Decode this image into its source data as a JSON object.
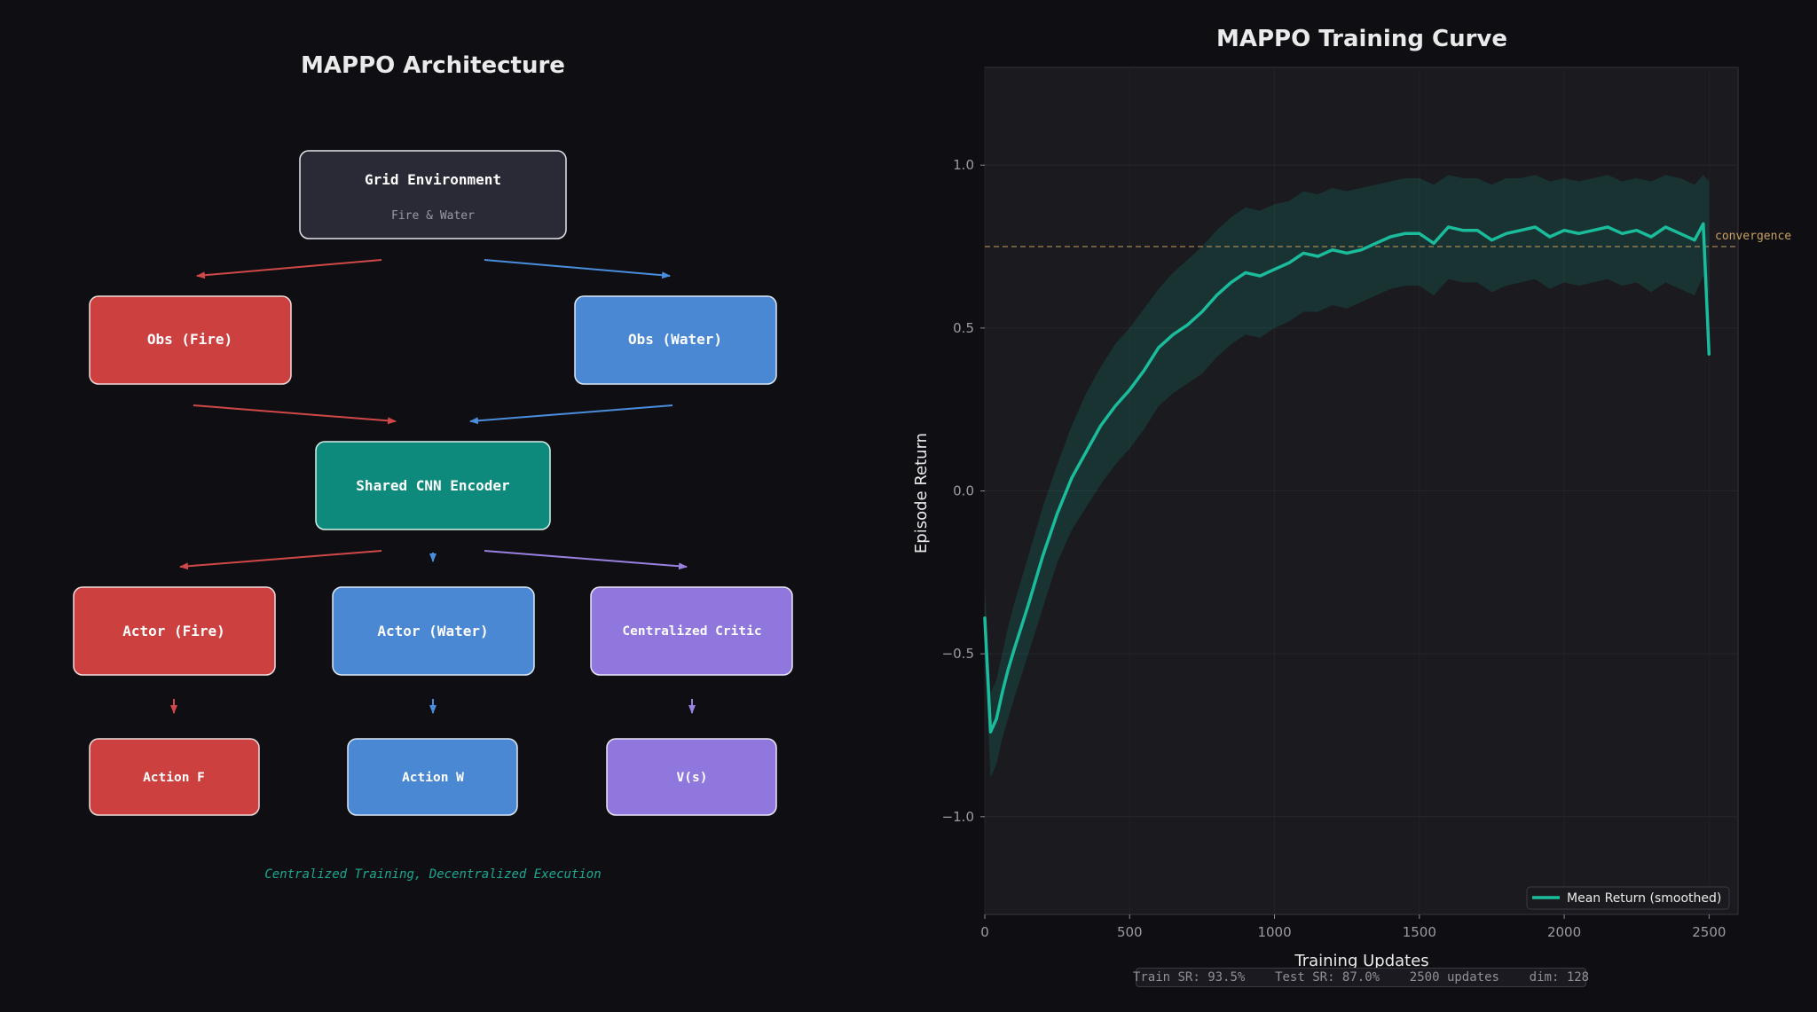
{
  "diagram": {
    "title": "MAPPO Architecture",
    "nodes": {
      "grid_env": {
        "label": "Grid Environment",
        "sublabel": "Fire & Water"
      },
      "obs_fire": {
        "label": "Obs (Fire)"
      },
      "obs_water": {
        "label": "Obs (Water)"
      },
      "encoder": {
        "label": "Shared CNN Encoder"
      },
      "actor_fire": {
        "label": "Actor (Fire)"
      },
      "actor_water": {
        "label": "Actor (Water)"
      },
      "critic": {
        "label": "Centralized Critic"
      },
      "action_f": {
        "label": "Action F"
      },
      "action_w": {
        "label": "Action W"
      },
      "value": {
        "label": "V(s)"
      }
    },
    "caption": "Centralized Training, Decentralized Execution"
  },
  "chart_data": {
    "type": "line",
    "title": "MAPPO Training Curve",
    "xlabel": "Training Updates",
    "ylabel": "Episode Return",
    "xlim": [
      0,
      2600
    ],
    "ylim": [
      -1.3,
      1.3
    ],
    "xticks": [
      0,
      500,
      1000,
      1500,
      2000,
      2500
    ],
    "yticks": [
      -1.0,
      -0.5,
      0.0,
      0.5,
      1.0
    ],
    "grid": true,
    "reference_line": {
      "y": 0.75,
      "label": "convergence",
      "style": "dashed",
      "color": "#c8a060"
    },
    "legend": {
      "position": "bottom-right",
      "entries": [
        "Mean Return (smoothed)"
      ]
    },
    "series": [
      {
        "name": "Mean Return (smoothed)",
        "color": "#1abc9c",
        "x": [
          0,
          20,
          40,
          60,
          80,
          100,
          150,
          200,
          250,
          300,
          350,
          400,
          450,
          500,
          550,
          600,
          650,
          700,
          750,
          800,
          850,
          900,
          950,
          1000,
          1050,
          1100,
          1150,
          1200,
          1250,
          1300,
          1350,
          1400,
          1450,
          1500,
          1550,
          1600,
          1650,
          1700,
          1750,
          1800,
          1850,
          1900,
          1950,
          2000,
          2050,
          2100,
          2150,
          2200,
          2250,
          2300,
          2350,
          2400,
          2450,
          2480,
          2500
        ],
        "y": [
          -0.39,
          -0.74,
          -0.7,
          -0.62,
          -0.55,
          -0.49,
          -0.35,
          -0.2,
          -0.07,
          0.04,
          0.12,
          0.2,
          0.26,
          0.31,
          0.37,
          0.44,
          0.48,
          0.51,
          0.55,
          0.6,
          0.64,
          0.67,
          0.66,
          0.68,
          0.7,
          0.73,
          0.72,
          0.74,
          0.73,
          0.74,
          0.76,
          0.78,
          0.79,
          0.79,
          0.76,
          0.81,
          0.8,
          0.8,
          0.77,
          0.79,
          0.8,
          0.81,
          0.78,
          0.8,
          0.79,
          0.8,
          0.81,
          0.79,
          0.8,
          0.78,
          0.81,
          0.79,
          0.77,
          0.82,
          0.42
        ]
      }
    ],
    "band_upper": [
      -0.3,
      -0.62,
      -0.58,
      -0.5,
      -0.42,
      -0.35,
      -0.2,
      -0.05,
      0.08,
      0.2,
      0.3,
      0.38,
      0.45,
      0.5,
      0.56,
      0.62,
      0.67,
      0.71,
      0.75,
      0.8,
      0.84,
      0.87,
      0.86,
      0.88,
      0.89,
      0.92,
      0.91,
      0.93,
      0.92,
      0.93,
      0.94,
      0.95,
      0.96,
      0.96,
      0.94,
      0.97,
      0.96,
      0.96,
      0.94,
      0.96,
      0.96,
      0.97,
      0.95,
      0.96,
      0.95,
      0.96,
      0.97,
      0.95,
      0.96,
      0.95,
      0.97,
      0.96,
      0.94,
      0.97,
      0.95
    ],
    "band_lower": [
      -0.5,
      -0.88,
      -0.84,
      -0.76,
      -0.7,
      -0.64,
      -0.5,
      -0.36,
      -0.22,
      -0.12,
      -0.05,
      0.02,
      0.08,
      0.13,
      0.19,
      0.26,
      0.3,
      0.33,
      0.36,
      0.41,
      0.45,
      0.48,
      0.47,
      0.5,
      0.52,
      0.55,
      0.55,
      0.57,
      0.56,
      0.58,
      0.6,
      0.62,
      0.63,
      0.63,
      0.6,
      0.65,
      0.64,
      0.64,
      0.61,
      0.63,
      0.64,
      0.65,
      0.62,
      0.64,
      0.63,
      0.64,
      0.65,
      0.63,
      0.64,
      0.61,
      0.64,
      0.62,
      0.6,
      0.66,
      0.6
    ]
  },
  "stats": {
    "train_sr": "Train SR: 93.5%",
    "test_sr": "Test SR: 87.0%",
    "updates": "2500 updates",
    "dim": "dim: 128"
  },
  "colors": {
    "fire": "#cc4040",
    "water": "#4a88d4",
    "encoder": "#0e8a7c",
    "critic": "#9077dd",
    "env": "#2a2a36",
    "accent": "#1abc9c"
  }
}
